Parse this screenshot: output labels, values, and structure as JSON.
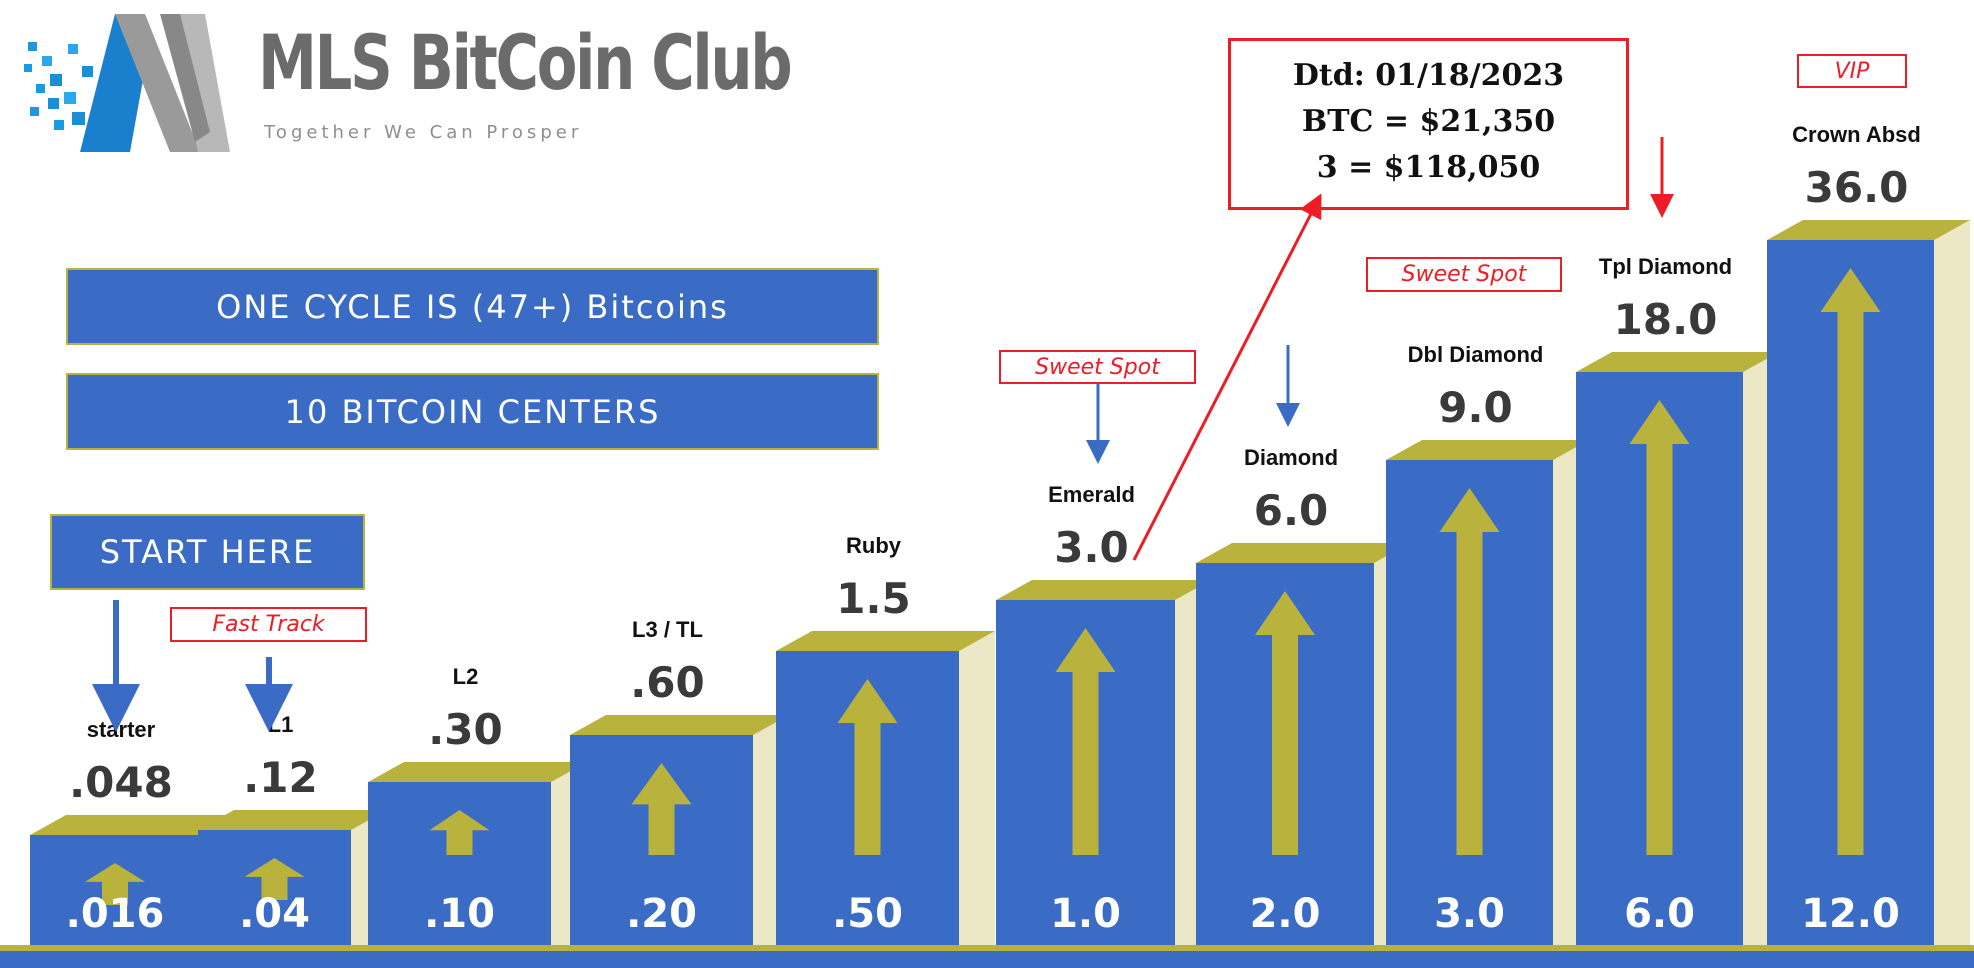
{
  "brand": {
    "title": "MLS BitCoin Club",
    "tagline": "Together We Can Prosper"
  },
  "banners": {
    "cycle": "ONE CYCLE IS (47+)  Bitcoins",
    "centers": "10 BITCOIN CENTERS",
    "start": "START HERE"
  },
  "price_box": {
    "line1": "Dtd: 01/18/2023",
    "line2": "BTC = $21,350",
    "line3": "3 = $118,050"
  },
  "tags": {
    "fast_track": "Fast Track",
    "sweet_spot": "Sweet Spot",
    "vip": "VIP"
  },
  "colors": {
    "bar_blue": "#3a6cc6",
    "bar_top_gold": "#b9b23c",
    "bar_side": "#ece7c4",
    "annotation_red": "#ee1c25"
  },
  "levels": [
    {
      "name": "starter",
      "total": ".048",
      "entry": ".016"
    },
    {
      "name": "L1",
      "total": ".12",
      "entry": ".04"
    },
    {
      "name": "L2",
      "total": ".30",
      "entry": ".10"
    },
    {
      "name": "L3 / TL",
      "total": ".60",
      "entry": ".20"
    },
    {
      "name": "Ruby",
      "total": "1.5",
      "entry": ".50"
    },
    {
      "name": "Emerald",
      "total": "3.0",
      "entry": "1.0"
    },
    {
      "name": "Diamond",
      "total": "6.0",
      "entry": "2.0"
    },
    {
      "name": "Dbl Diamond",
      "total": "9.0",
      "entry": "3.0"
    },
    {
      "name": "Tpl Diamond",
      "total": "18.0",
      "entry": "6.0"
    },
    {
      "name": "Crown Absd",
      "total": "36.0",
      "entry": "12.0"
    }
  ]
}
